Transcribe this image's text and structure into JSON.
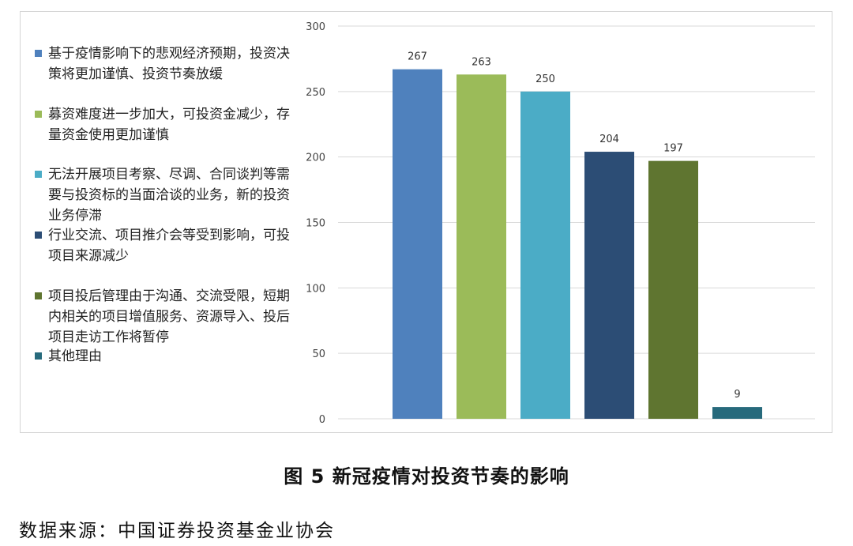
{
  "chart_data": {
    "type": "bar",
    "categories": [
      "基于疫情影响下的悲观经济预期，投资决策将更加谨慎、投资节奏放缓",
      "募资难度进一步加大，可投资金减少，存量资金使用更加谨慎",
      "无法开展项目考察、尽调、合同谈判等需要与投资标的当面洽谈的业务，新的投资业务停滞",
      "行业交流、项目推介会等受到影响，可投项目来源减少",
      "项目投后管理由于沟通、交流受限，短期内相关的项目增值服务、资源导入、投后项目走访工作将暂停",
      "其他理由"
    ],
    "values": [
      267,
      263,
      250,
      204,
      197,
      9
    ],
    "colors": [
      "#4f81bd",
      "#9bbb59",
      "#4bacc6",
      "#2c4d75",
      "#5f7530",
      "#276a7c"
    ],
    "ylim": [
      0,
      300
    ],
    "yticks": [
      "0",
      "50",
      "100",
      "150",
      "200",
      "250",
      "300"
    ],
    "data_labels": [
      "267",
      "263",
      "250",
      "204",
      "197",
      "9"
    ],
    "grid": true,
    "legend_position": "left"
  },
  "caption": "图 5  新冠疫情对投资节奏的影响",
  "source": "数据来源：中国证券投资基金业协会"
}
